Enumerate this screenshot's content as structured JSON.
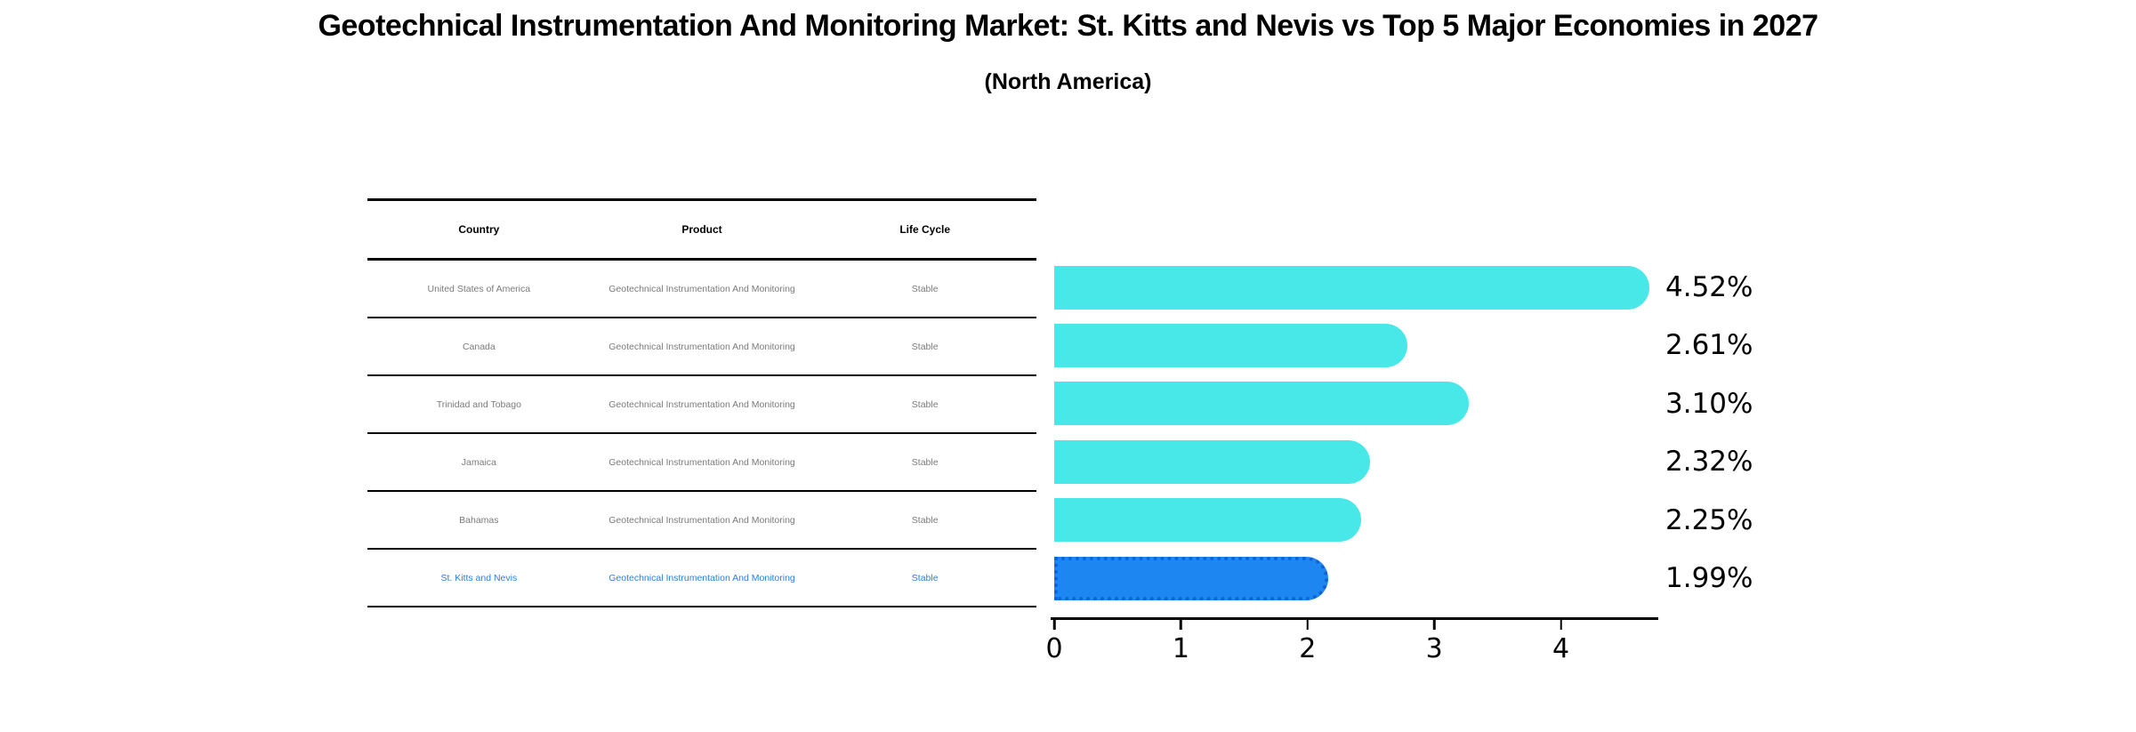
{
  "title": "Geotechnical Instrumentation And Monitoring Market: St. Kitts and Nevis vs Top 5 Major Economies in 2027",
  "subtitle": "(North America)",
  "table": {
    "headers": [
      "Country",
      "Product",
      "Life Cycle"
    ],
    "rows": [
      {
        "country": "United States of America",
        "product": "Geotechnical Instrumentation And Monitoring",
        "life_cycle": "Stable",
        "highlight": false
      },
      {
        "country": "Canada",
        "product": "Geotechnical Instrumentation And Monitoring",
        "life_cycle": "Stable",
        "highlight": false
      },
      {
        "country": "Trinidad and Tobago",
        "product": "Geotechnical Instrumentation And Monitoring",
        "life_cycle": "Stable",
        "highlight": false
      },
      {
        "country": "Jamaica",
        "product": "Geotechnical Instrumentation And Monitoring",
        "life_cycle": "Stable",
        "highlight": false
      },
      {
        "country": "Bahamas",
        "product": "Geotechnical Instrumentation And Monitoring",
        "life_cycle": "Stable",
        "highlight": false
      },
      {
        "country": "St. Kitts and Nevis",
        "product": "Geotechnical Instrumentation And Monitoring",
        "life_cycle": "Stable",
        "highlight": true
      }
    ]
  },
  "chart_data": {
    "type": "bar",
    "orientation": "horizontal",
    "title": "Geotechnical Instrumentation And Monitoring Market: St. Kitts and Nevis vs Top 5 Major Economies in 2027 (North America)",
    "categories": [
      "United States of America",
      "Canada",
      "Trinidad and Tobago",
      "Jamaica",
      "Bahamas",
      "St. Kitts and Nevis"
    ],
    "values": [
      4.52,
      2.61,
      3.1,
      2.32,
      2.25,
      1.99
    ],
    "labels": [
      "4.52%",
      "2.61%",
      "3.10%",
      "2.32%",
      "2.25%",
      "1.99%"
    ],
    "xticks": [
      "0",
      "1",
      "2",
      "3",
      "4"
    ],
    "xlim": [
      0,
      4.78
    ],
    "grid": false,
    "legend": "none",
    "bar_color": "#48e8e8",
    "highlight_color": "#1e86f0",
    "highlight_text_color": "#2b7fe0",
    "highlight_index": 5
  }
}
